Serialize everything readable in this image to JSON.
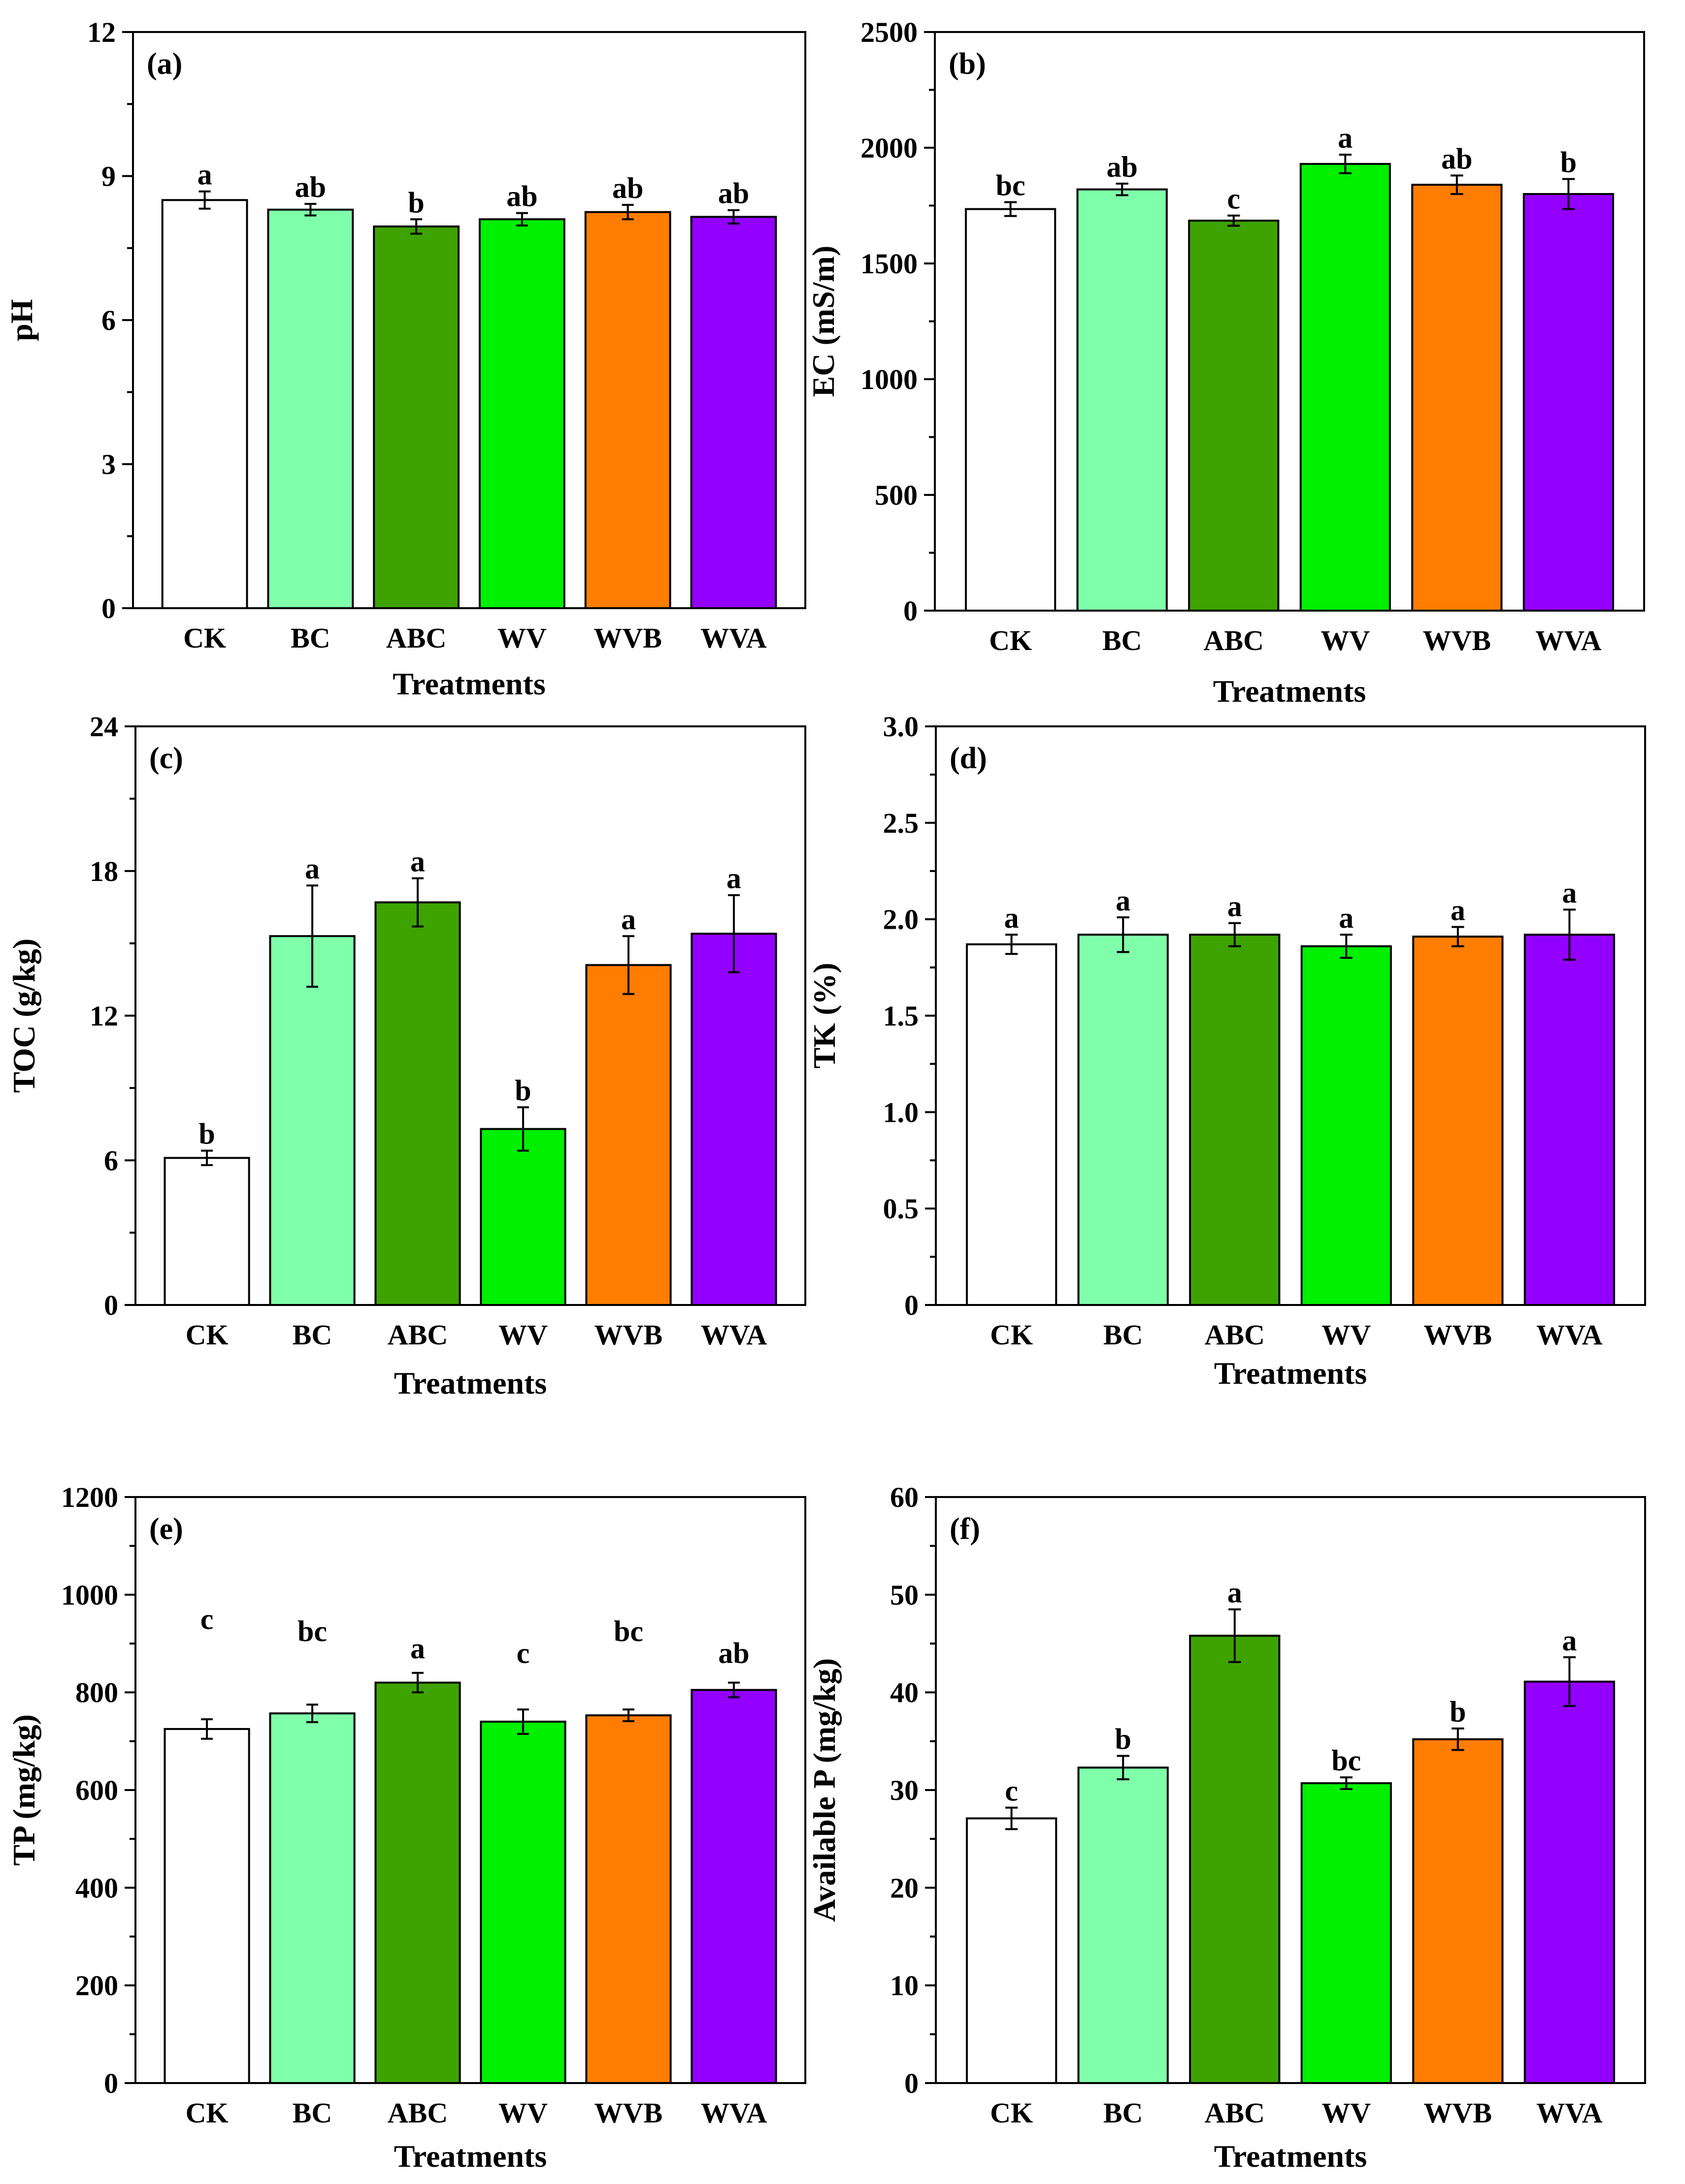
{
  "chart_data": [
    {
      "type": "bar",
      "panel_label": "(a)",
      "title": "",
      "xlabel": "Treatments",
      "ylabel": "pH",
      "categories": [
        "CK",
        "BC",
        "ABC",
        "WV",
        "WVB",
        "WVA"
      ],
      "values": [
        8.5,
        8.3,
        7.95,
        8.1,
        8.25,
        8.15
      ],
      "errors": [
        0.18,
        0.12,
        0.15,
        0.13,
        0.15,
        0.14
      ],
      "significance": [
        "a",
        "ab",
        "b",
        "ab",
        "ab",
        "ab"
      ],
      "ylim": [
        0,
        12
      ],
      "yticks": [
        "0",
        "3",
        "6",
        "9",
        "12"
      ],
      "colors": [
        "#ffffff",
        "#80ffaa",
        "#3ea300",
        "#00f000",
        "#ff7d00",
        "#9300ff"
      ]
    },
    {
      "type": "bar",
      "panel_label": "(b)",
      "title": "",
      "xlabel": "Treatments",
      "ylabel": "EC (mS/m)",
      "categories": [
        "CK",
        "BC",
        "ABC",
        "WV",
        "WVB",
        "WVA"
      ],
      "values": [
        1735,
        1820,
        1685,
        1930,
        1840,
        1800
      ],
      "errors": [
        30,
        25,
        22,
        40,
        40,
        65
      ],
      "significance": [
        "bc",
        "ab",
        "c",
        "a",
        "ab",
        "b"
      ],
      "ylim": [
        0,
        2500
      ],
      "yticks": [
        "0",
        "500",
        "1000",
        "1500",
        "2000",
        "2500"
      ],
      "colors": [
        "#ffffff",
        "#80ffaa",
        "#3ea300",
        "#00f000",
        "#ff7d00",
        "#9300ff"
      ]
    },
    {
      "type": "bar",
      "panel_label": "(c)",
      "title": "",
      "xlabel": "Treatments",
      "ylabel": "TOC (g/kg)",
      "categories": [
        "CK",
        "BC",
        "ABC",
        "WV",
        "WVB",
        "WVA"
      ],
      "values": [
        6.1,
        15.3,
        16.7,
        7.3,
        14.1,
        15.4
      ],
      "errors": [
        0.3,
        2.1,
        1.0,
        0.9,
        1.2,
        1.6
      ],
      "significance": [
        "b",
        "a",
        "a",
        "b",
        "a",
        "a"
      ],
      "ylim": [
        0,
        24
      ],
      "yticks": [
        "0",
        "6",
        "12",
        "18",
        "24"
      ],
      "colors": [
        "#ffffff",
        "#80ffaa",
        "#3ea300",
        "#00f000",
        "#ff7d00",
        "#9300ff"
      ]
    },
    {
      "type": "bar",
      "panel_label": "(d)",
      "title": "",
      "xlabel": "Treatments",
      "ylabel": "TK (%)",
      "categories": [
        "CK",
        "BC",
        "ABC",
        "WV",
        "WVB",
        "WVA"
      ],
      "values": [
        1.87,
        1.92,
        1.92,
        1.86,
        1.91,
        1.92
      ],
      "errors": [
        0.05,
        0.09,
        0.06,
        0.06,
        0.05,
        0.13
      ],
      "significance": [
        "a",
        "a",
        "a",
        "a",
        "a",
        "a"
      ],
      "ylim": [
        0,
        3.0
      ],
      "yticks": [
        "0",
        "0.5",
        "1.0",
        "1.5",
        "2.0",
        "2.5",
        "3.0"
      ],
      "colors": [
        "#ffffff",
        "#80ffaa",
        "#3ea300",
        "#00f000",
        "#ff7d00",
        "#9300ff"
      ]
    },
    {
      "type": "bar",
      "panel_label": "(e)",
      "title": "",
      "xlabel": "Treatments",
      "ylabel": "TP (mg/kg)",
      "categories": [
        "CK",
        "BC",
        "ABC",
        "WV",
        "WVB",
        "WVA"
      ],
      "values": [
        725,
        757,
        820,
        740,
        753,
        805
      ],
      "errors": [
        20,
        18,
        20,
        25,
        12,
        15
      ],
      "significance": [
        "c",
        "bc",
        "a",
        "c",
        "bc",
        "ab"
      ],
      "label_values": [
        930,
        905,
        870,
        860,
        905,
        860
      ],
      "ylim": [
        0,
        1200
      ],
      "yticks": [
        "0",
        "200",
        "400",
        "600",
        "800",
        "1000",
        "1200"
      ],
      "colors": [
        "#ffffff",
        "#80ffaa",
        "#3ea300",
        "#00f000",
        "#ff7d00",
        "#9300ff"
      ]
    },
    {
      "type": "bar",
      "panel_label": "(f)",
      "title": "",
      "xlabel": "Treatments",
      "ylabel": "Available P (mg/kg)",
      "categories": [
        "CK",
        "BC",
        "ABC",
        "WV",
        "WVB",
        "WVA"
      ],
      "values": [
        27.1,
        32.3,
        45.8,
        30.7,
        35.2,
        41.1
      ],
      "errors": [
        1.1,
        1.2,
        2.7,
        0.6,
        1.1,
        2.5
      ],
      "significance": [
        "c",
        "b",
        "a",
        "bc",
        "b",
        "a"
      ],
      "ylim": [
        0,
        60
      ],
      "yticks": [
        "0",
        "10",
        "20",
        "30",
        "40",
        "50",
        "60"
      ],
      "colors": [
        "#ffffff",
        "#80ffaa",
        "#3ea300",
        "#00f000",
        "#ff7d00",
        "#9300ff"
      ]
    }
  ]
}
